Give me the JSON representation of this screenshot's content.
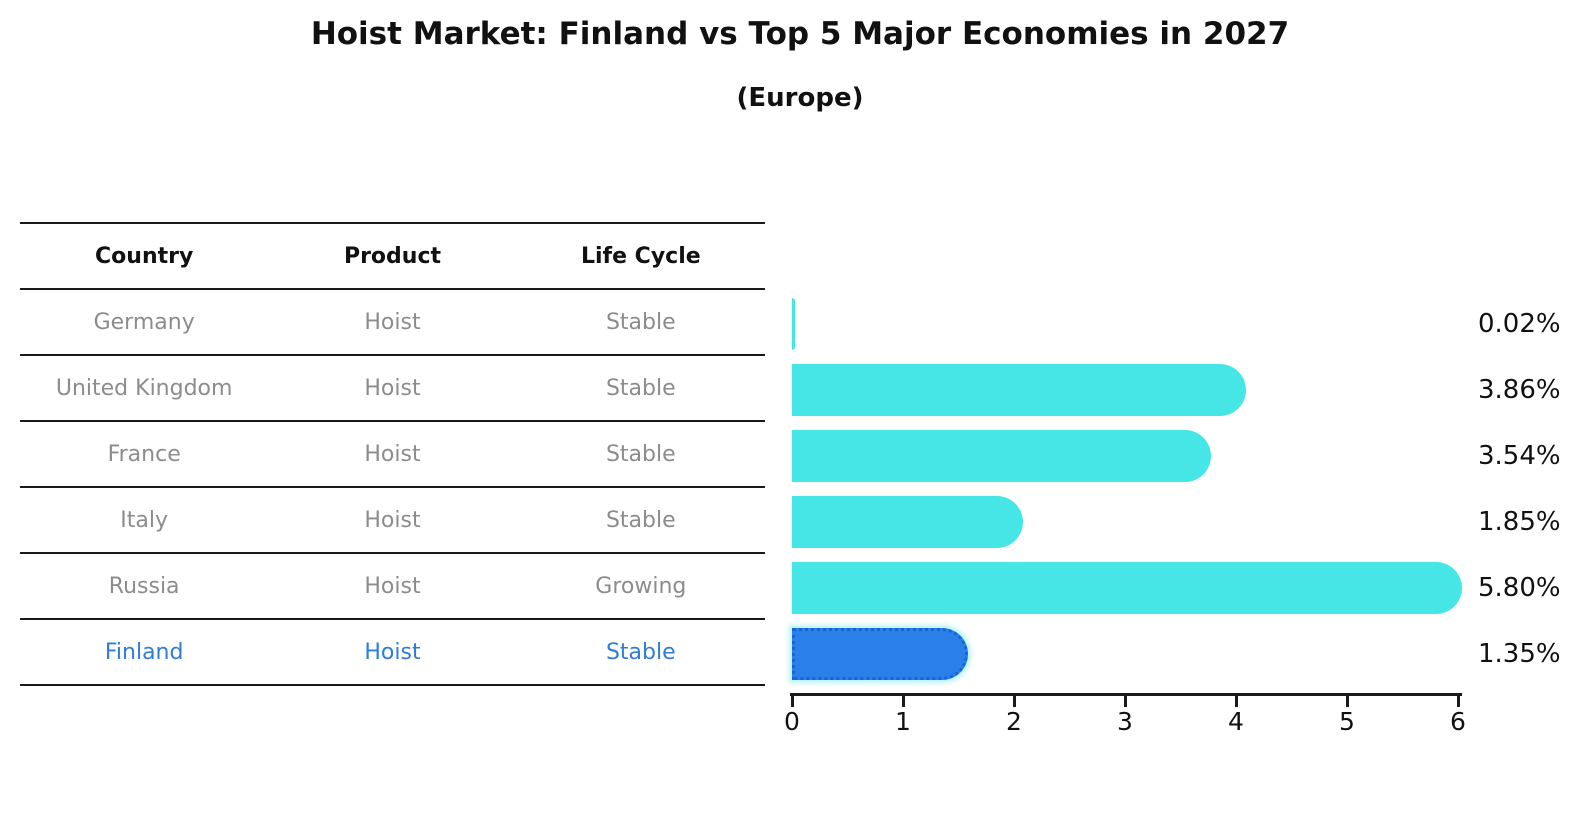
{
  "title": "Hoist Market: Finland vs Top 5 Major Economies in 2027",
  "subtitle": "(Europe)",
  "table": {
    "headers": [
      "Country",
      "Product",
      "Life Cycle"
    ],
    "rows": [
      {
        "country": "Germany",
        "product": "Hoist",
        "life_cycle": "Stable",
        "highlight": false
      },
      {
        "country": "United Kingdom",
        "product": "Hoist",
        "life_cycle": "Stable",
        "highlight": false
      },
      {
        "country": "France",
        "product": "Hoist",
        "life_cycle": "Stable",
        "highlight": false
      },
      {
        "country": "Italy",
        "product": "Hoist",
        "life_cycle": "Stable",
        "highlight": false
      },
      {
        "country": "Russia",
        "product": "Hoist",
        "life_cycle": "Growing",
        "highlight": false
      },
      {
        "country": "Finland",
        "product": "Hoist",
        "life_cycle": "Stable",
        "highlight": true
      }
    ]
  },
  "chart_data": {
    "type": "bar",
    "orientation": "horizontal",
    "title": "Hoist Market: Finland vs Top 5 Major Economies in 2027",
    "subtitle": "(Europe)",
    "categories": [
      "Germany",
      "United Kingdom",
      "France",
      "Italy",
      "Russia",
      "Finland"
    ],
    "values": [
      0.02,
      3.86,
      3.54,
      1.85,
      5.8,
      1.35
    ],
    "value_labels": [
      "0.02%",
      "3.86%",
      "3.54%",
      "1.85%",
      "5.80%",
      "1.35%"
    ],
    "xlim": [
      0,
      6
    ],
    "x_ticks": [
      "0",
      "1",
      "2",
      "3",
      "4",
      "5",
      "6"
    ],
    "grid": false,
    "legend": "none",
    "bar_color": "#46E6E6",
    "highlight_index": 5,
    "highlight_bar_color": "#2A7FE8",
    "highlight_border_color": "#1565D8"
  },
  "colors": {
    "row_text": "#8C8C8C",
    "highlight_text": "#2F7CDB",
    "header_text": "#111111",
    "rule_line": "#1A1A1A",
    "axis": "#1A1A1A",
    "value_label": "#111111"
  }
}
